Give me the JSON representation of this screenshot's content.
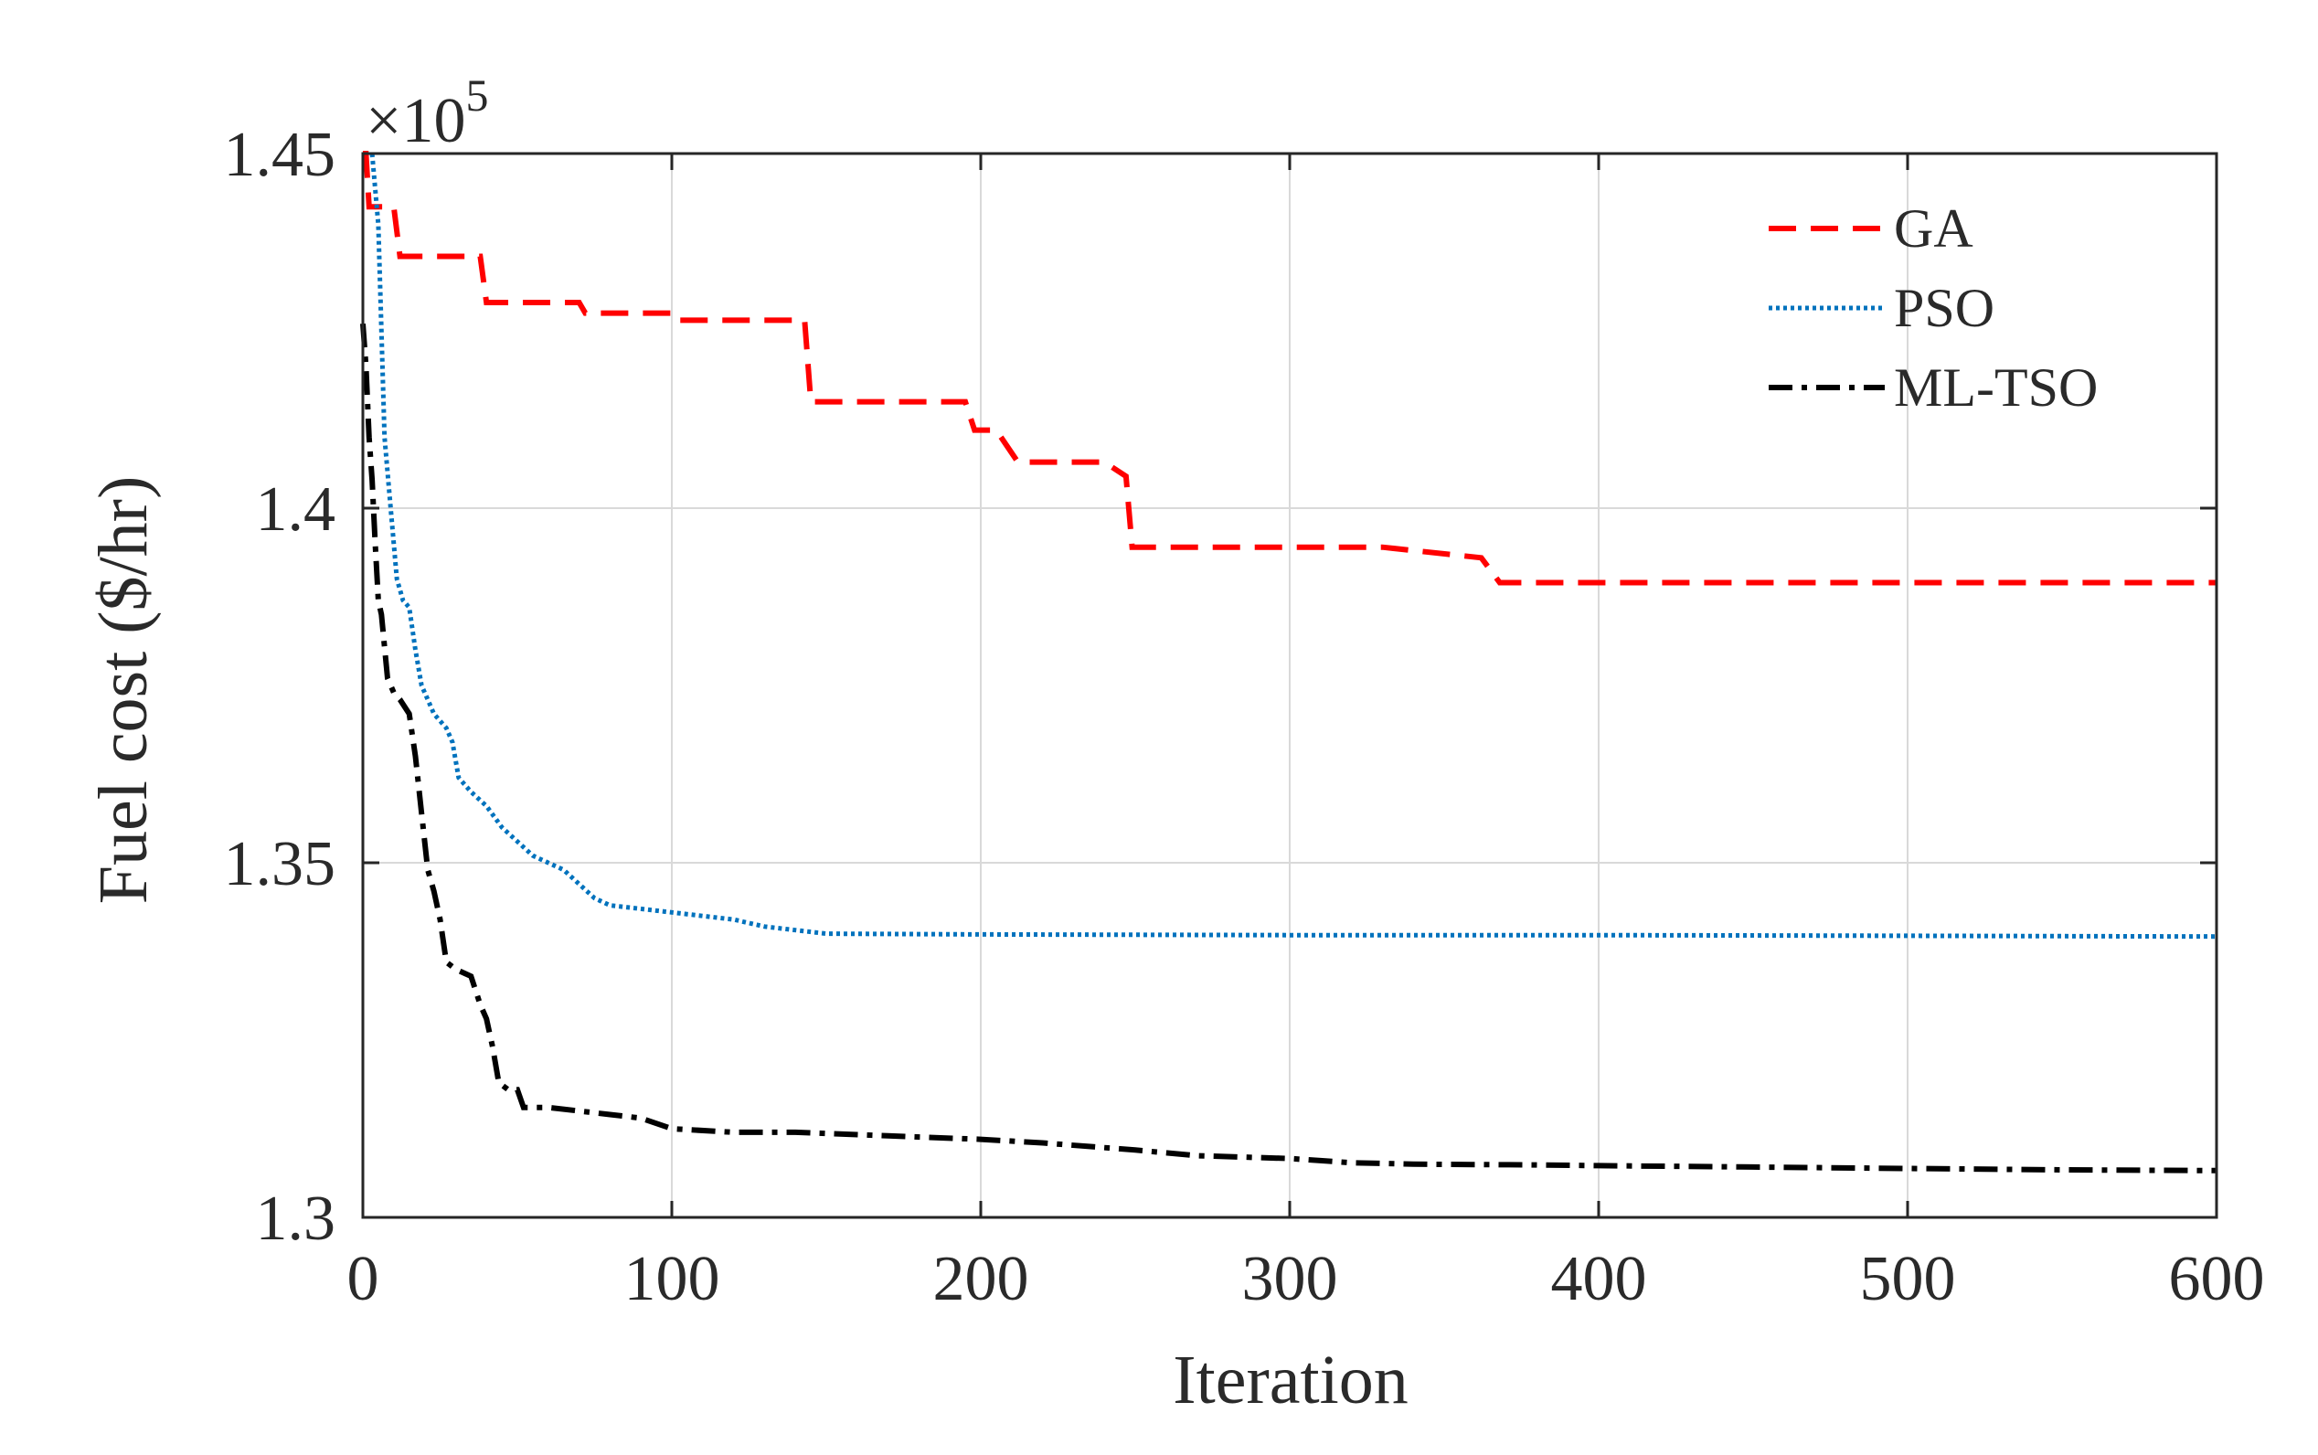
{
  "chart_data": {
    "type": "line",
    "title": "",
    "xlabel": "Iteration",
    "ylabel": "Fuel cost ($/hr)",
    "y_multiplier_label": "×10",
    "y_multiplier_exponent": "5",
    "xlim": [
      0,
      600
    ],
    "ylim": [
      1.3,
      1.45
    ],
    "xticks": [
      0,
      100,
      200,
      300,
      400,
      500,
      600
    ],
    "xtick_labels": [
      "0",
      "100",
      "200",
      "300",
      "400",
      "500",
      "600"
    ],
    "yticks": [
      1.3,
      1.35,
      1.4,
      1.45
    ],
    "ytick_labels": [
      "1.3",
      "1.35",
      "1.4",
      "1.45"
    ],
    "grid": true,
    "legend_position": "top-right",
    "series": [
      {
        "name": "GA",
        "color": "#ff0000",
        "style": "dashed",
        "points": [
          [
            0,
            1.45
          ],
          [
            1,
            1.45
          ],
          [
            2,
            1.4425
          ],
          [
            10,
            1.4425
          ],
          [
            12,
            1.4355
          ],
          [
            38,
            1.4355
          ],
          [
            40,
            1.429
          ],
          [
            70,
            1.429
          ],
          [
            72,
            1.4275
          ],
          [
            100,
            1.4275
          ],
          [
            101,
            1.4265
          ],
          [
            143,
            1.4265
          ],
          [
            145,
            1.415
          ],
          [
            195,
            1.415
          ],
          [
            198,
            1.411
          ],
          [
            205,
            1.411
          ],
          [
            212,
            1.4065
          ],
          [
            240,
            1.4065
          ],
          [
            247,
            1.4045
          ],
          [
            249,
            1.3945
          ],
          [
            330,
            1.3945
          ],
          [
            362,
            1.393
          ],
          [
            368,
            1.3895
          ],
          [
            600,
            1.3895
          ]
        ]
      },
      {
        "name": "PSO",
        "color": "#0072bd",
        "style": "dotted",
        "points": [
          [
            3,
            1.45
          ],
          [
            5,
            1.44
          ],
          [
            6,
            1.425
          ],
          [
            7,
            1.41
          ],
          [
            9,
            1.4
          ],
          [
            11,
            1.39
          ],
          [
            13,
            1.387
          ],
          [
            15,
            1.386
          ],
          [
            17,
            1.38
          ],
          [
            19,
            1.375
          ],
          [
            21,
            1.373
          ],
          [
            23,
            1.371
          ],
          [
            27,
            1.369
          ],
          [
            29,
            1.367
          ],
          [
            31,
            1.362
          ],
          [
            35,
            1.36
          ],
          [
            40,
            1.358
          ],
          [
            45,
            1.355
          ],
          [
            50,
            1.353
          ],
          [
            55,
            1.351
          ],
          [
            60,
            1.35
          ],
          [
            65,
            1.349
          ],
          [
            70,
            1.347
          ],
          [
            75,
            1.345
          ],
          [
            80,
            1.344
          ],
          [
            90,
            1.3435
          ],
          [
            100,
            1.343
          ],
          [
            110,
            1.3425
          ],
          [
            120,
            1.342
          ],
          [
            130,
            1.341
          ],
          [
            140,
            1.3405
          ],
          [
            150,
            1.34
          ],
          [
            200,
            1.3399
          ],
          [
            300,
            1.3398
          ],
          [
            400,
            1.3398
          ],
          [
            500,
            1.3397
          ],
          [
            600,
            1.3396
          ]
        ]
      },
      {
        "name": "ML-TSO",
        "color": "#000000",
        "style": "dashdot",
        "points": [
          [
            0,
            1.426
          ],
          [
            1,
            1.42
          ],
          [
            2,
            1.41
          ],
          [
            3,
            1.404
          ],
          [
            4,
            1.395
          ],
          [
            5,
            1.387
          ],
          [
            6,
            1.385
          ],
          [
            8,
            1.376
          ],
          [
            10,
            1.374
          ],
          [
            12,
            1.373
          ],
          [
            15,
            1.371
          ],
          [
            17,
            1.365
          ],
          [
            19,
            1.357
          ],
          [
            21,
            1.349
          ],
          [
            23,
            1.346
          ],
          [
            25,
            1.342
          ],
          [
            27,
            1.336
          ],
          [
            30,
            1.335
          ],
          [
            35,
            1.334
          ],
          [
            38,
            1.33
          ],
          [
            40,
            1.328
          ],
          [
            42,
            1.324
          ],
          [
            44,
            1.319
          ],
          [
            47,
            1.318
          ],
          [
            50,
            1.318
          ],
          [
            52,
            1.3155
          ],
          [
            60,
            1.3155
          ],
          [
            70,
            1.315
          ],
          [
            80,
            1.3145
          ],
          [
            90,
            1.314
          ],
          [
            100,
            1.3125
          ],
          [
            120,
            1.312
          ],
          [
            140,
            1.312
          ],
          [
            170,
            1.3115
          ],
          [
            200,
            1.311
          ],
          [
            220,
            1.3105
          ],
          [
            250,
            1.3095
          ],
          [
            270,
            1.3087
          ],
          [
            300,
            1.3083
          ],
          [
            310,
            1.308
          ],
          [
            320,
            1.3077
          ],
          [
            340,
            1.3075
          ],
          [
            380,
            1.3074
          ],
          [
            400,
            1.3073
          ],
          [
            450,
            1.3071
          ],
          [
            500,
            1.3069
          ],
          [
            550,
            1.3067
          ],
          [
            600,
            1.3066
          ]
        ]
      }
    ]
  }
}
